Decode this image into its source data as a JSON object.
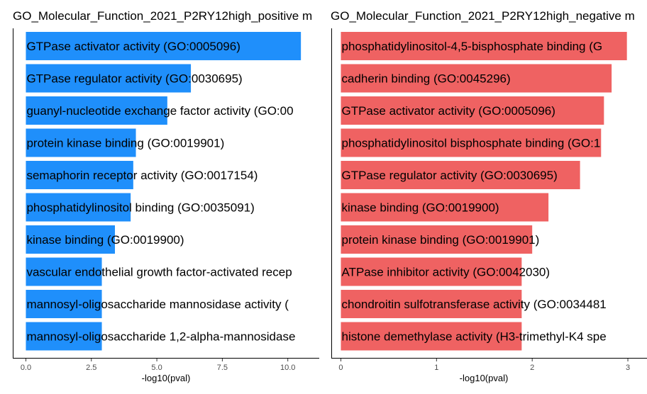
{
  "chart_data": [
    {
      "type": "bar",
      "orientation": "horizontal",
      "title": "GO_Molecular_Function_2021_P2RY12high_positive m",
      "xlabel": "-log10(pval)",
      "xlim": [
        -0.5,
        11.2
      ],
      "xticks": [
        "0.0",
        "2.5",
        "5.0",
        "7.5",
        "10.0"
      ],
      "xtick_values": [
        0,
        2.5,
        5,
        7.5,
        10
      ],
      "color": "#1f8ffb",
      "categories": [
        "GTPase activator activity (GO:0005096)",
        "GTPase regulator activity (GO:0030695)",
        "guanyl-nucleotide exchange factor activity (GO:00",
        "protein kinase binding (GO:0019901)",
        "semaphorin receptor activity (GO:0017154)",
        "phosphatidylinositol binding (GO:0035091)",
        "kinase binding (GO:0019900)",
        "vascular endothelial growth factor-activated recep",
        "mannosyl-oligosaccharide mannosidase activity (",
        "mannosyl-oligosaccharide 1,2-alpha-mannosidase"
      ],
      "values": [
        10.5,
        6.3,
        5.4,
        4.2,
        4.1,
        4.0,
        3.4,
        2.9,
        2.9,
        2.9
      ]
    },
    {
      "type": "bar",
      "orientation": "horizontal",
      "title": "GO_Molecular_Function_2021_P2RY12high_negative m",
      "xlabel": "-log10(pval)",
      "xlim": [
        -0.1,
        3.2
      ],
      "xticks": [
        "0",
        "1",
        "2",
        "3"
      ],
      "xtick_values": [
        0,
        1,
        2,
        3
      ],
      "color": "#ef6262",
      "categories": [
        "phosphatidylinositol-4,5-bisphosphate binding (G",
        "cadherin binding (GO:0045296)",
        "GTPase activator activity (GO:0005096)",
        "phosphatidylinositol bisphosphate binding (GO:1",
        "GTPase regulator activity (GO:0030695)",
        "kinase binding (GO:0019900)",
        "protein kinase binding (GO:0019901)",
        "ATPase inhibitor activity (GO:0042030)",
        "chondroitin sulfotransferase activity (GO:0034481",
        "histone demethylase activity (H3-trimethyl-K4 spe"
      ],
      "values": [
        2.99,
        2.83,
        2.75,
        2.72,
        2.5,
        2.17,
        2.0,
        1.89,
        1.89,
        1.89
      ]
    }
  ]
}
